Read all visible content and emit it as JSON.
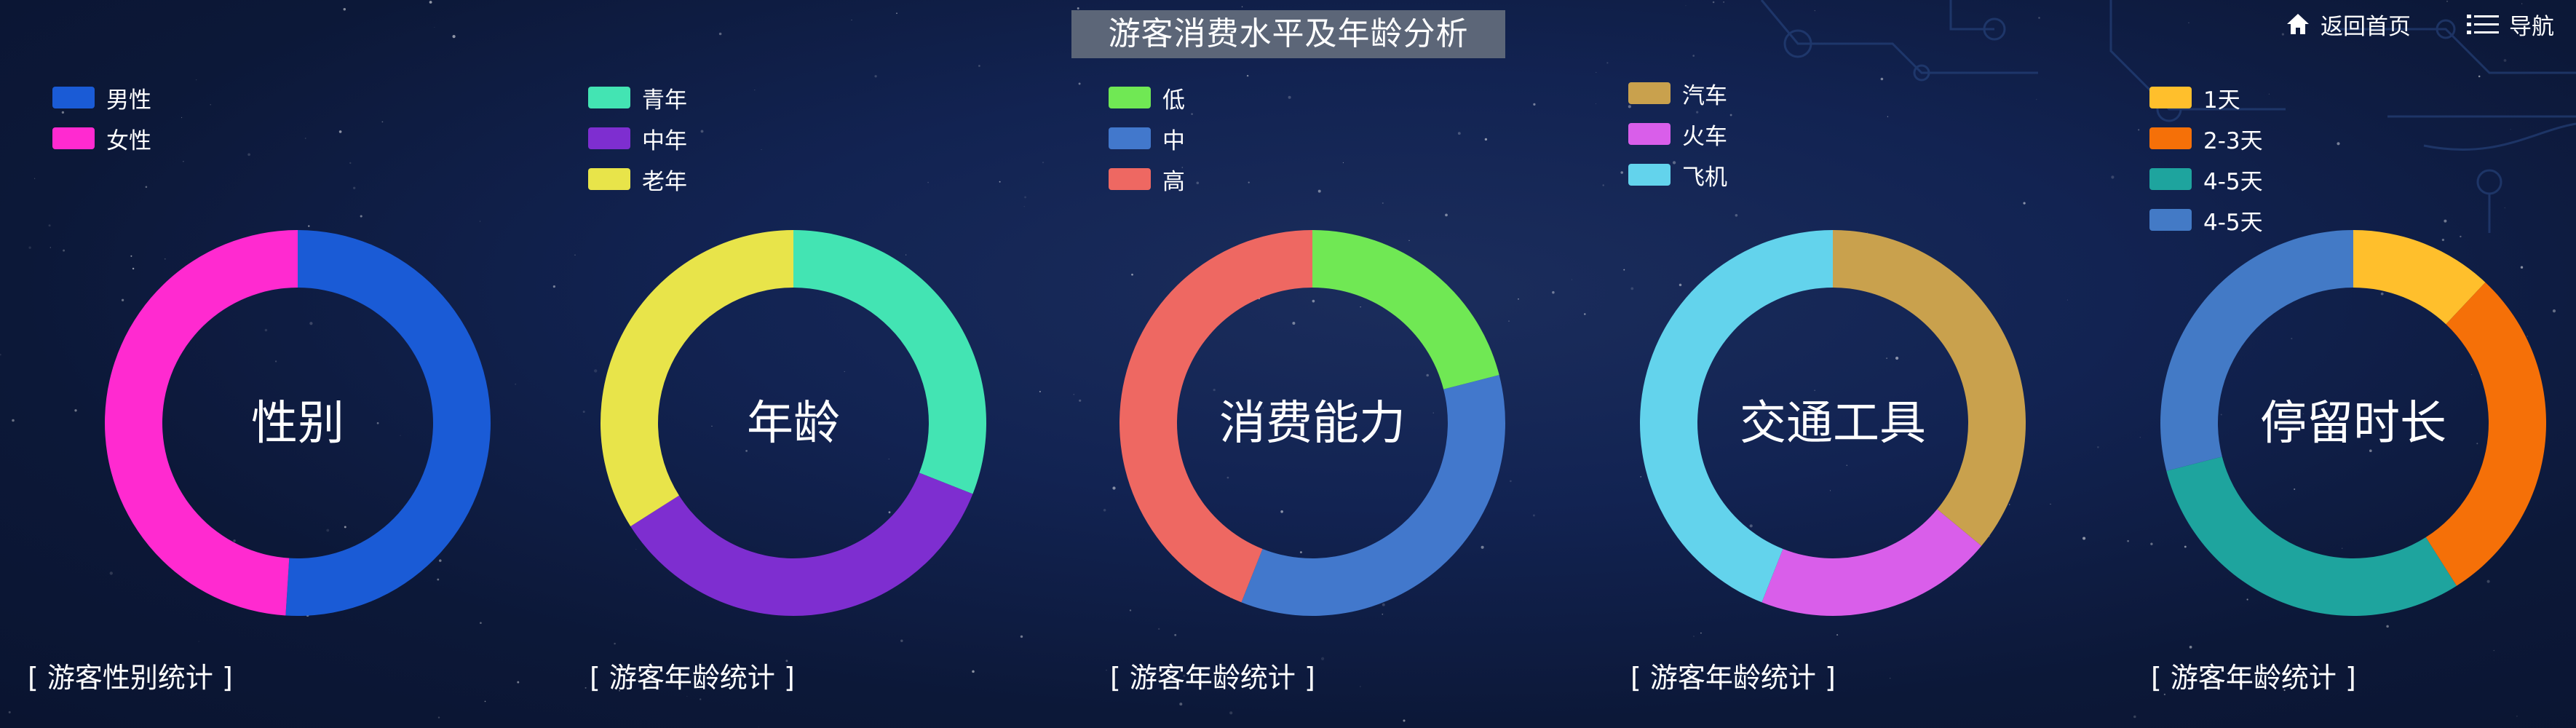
{
  "header": {
    "title": "游客消费水平及年龄分析",
    "home_label": "返回首页",
    "nav_label": "导航"
  },
  "colors": {
    "background": "#0d1a3e",
    "title_background": "#5c6678"
  },
  "icons": {
    "home": "home-icon",
    "nav": "menu-list-icon"
  },
  "chart_data": [
    {
      "type": "pie",
      "center_label": "性别",
      "caption": "[ 游客性别统计 ]",
      "legend_placement": "top-left",
      "series": [
        {
          "name": "男性",
          "value": 51,
          "color": "#1a5bd6"
        },
        {
          "name": "女性",
          "value": 49,
          "color": "#ff2ad0"
        }
      ]
    },
    {
      "type": "pie",
      "center_label": "年龄",
      "caption": "[ 游客年龄统计 ]",
      "legend_placement": "top-left",
      "series": [
        {
          "name": "青年",
          "value": 31,
          "color": "#43e4b3"
        },
        {
          "name": "中年",
          "value": 35,
          "color": "#7e2ed0"
        },
        {
          "name": "老年",
          "value": 34,
          "color": "#e8e44a"
        }
      ]
    },
    {
      "type": "pie",
      "center_label": "消费能力",
      "caption": "[ 游客年龄统计 ]",
      "legend_placement": "top-left",
      "series": [
        {
          "name": "低",
          "value": 21,
          "color": "#70e854"
        },
        {
          "name": "中",
          "value": 35,
          "color": "#4278cc"
        },
        {
          "name": "高",
          "value": 44,
          "color": "#ee6862"
        }
      ]
    },
    {
      "type": "pie",
      "center_label": "交通工具",
      "caption": "[ 游客年龄统计 ]",
      "legend_placement": "top-left",
      "series": [
        {
          "name": "汽车",
          "value": 36,
          "color": "#c9a14d"
        },
        {
          "name": "火车",
          "value": 20,
          "color": "#d95eea"
        },
        {
          "name": "飞机",
          "value": 44,
          "color": "#63d3ec"
        }
      ]
    },
    {
      "type": "pie",
      "center_label": "停留时长",
      "caption": "[ 游客年龄统计 ]",
      "legend_placement": "top-left",
      "series": [
        {
          "name": "1天",
          "value": 12,
          "color": "#ffbf2c"
        },
        {
          "name": "2-3天",
          "value": 29,
          "color": "#f57008"
        },
        {
          "name": "4-5天",
          "value": 30,
          "color": "#1ea49e"
        },
        {
          "name": "4-5天",
          "value": 29,
          "color": "#437ac6"
        }
      ]
    }
  ]
}
